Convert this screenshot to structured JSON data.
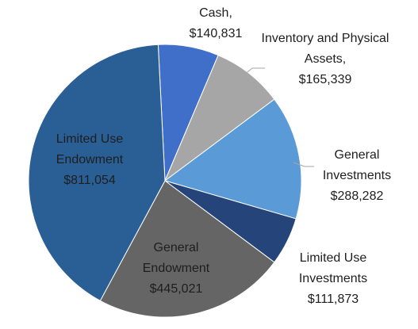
{
  "chart_data": {
    "type": "pie",
    "categories": [
      "Cash,",
      "Inventory and Physical Assets,",
      "General Investments",
      "Limited Use Investments",
      "General Endowment",
      "Limited Use Endowment"
    ],
    "values": [
      140831,
      165339,
      288282,
      111873,
      445021,
      811054
    ],
    "value_labels": [
      "$140,831",
      "$165,339",
      "$288,282",
      "$111,873",
      "$445,021",
      "$811,054"
    ],
    "colors": [
      "#3f6fc9",
      "#a6a6a6",
      "#5a9ad6",
      "#25457a",
      "#656565",
      "#2a5f96"
    ]
  }
}
